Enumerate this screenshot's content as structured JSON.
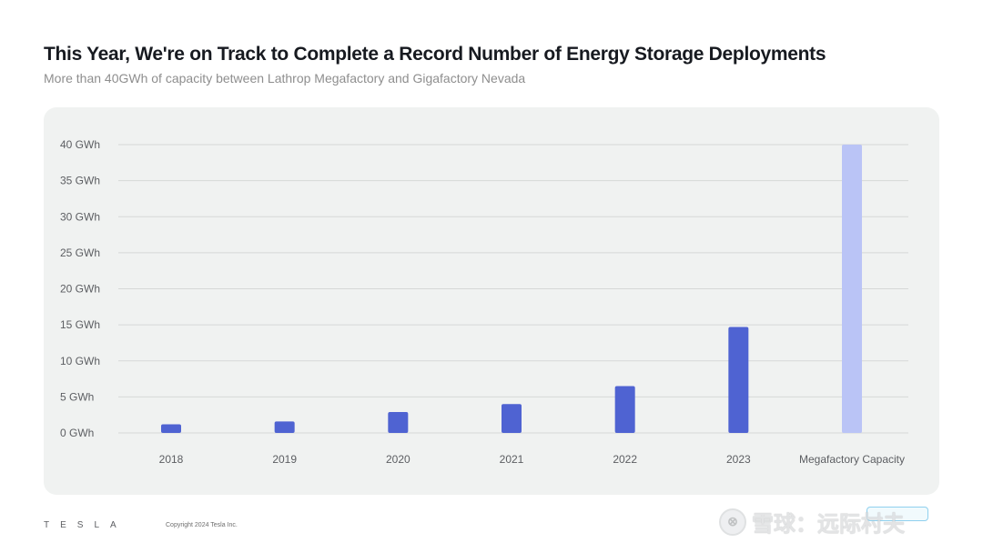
{
  "slide": {
    "title": "This Year, We're on Track to Complete a Record Number of Energy Storage Deployments",
    "subtitle": "More than 40GWh of capacity between Lathrop Megafactory and Gigafactory Nevada"
  },
  "footer": {
    "logo": "TESLA",
    "copyright": "Copyright 2024 Tesla Inc."
  },
  "watermark": {
    "logo_glyph": "⊗",
    "text": "雪球：远际村夫"
  },
  "colors": {
    "bar": "#4f63d2",
    "bar_capacity": "#bac4f6",
    "grid": "#d6d8d7",
    "axis_text": "#5c5e62",
    "panel_bg": "#f0f2f1"
  },
  "chart_data": {
    "type": "bar",
    "title": "",
    "xlabel": "",
    "ylabel": "",
    "ylim": [
      0,
      40
    ],
    "grid": true,
    "y_ticks": [
      "0 GWh",
      "5 GWh",
      "10 GWh",
      "15 GWh",
      "20 GWh",
      "25 GWh",
      "30 GWh",
      "35 GWh",
      "40 GWh"
    ],
    "y_tick_values": [
      0,
      5,
      10,
      15,
      20,
      25,
      30,
      35,
      40
    ],
    "categories": [
      "2018",
      "2019",
      "2020",
      "2021",
      "2022",
      "2023",
      "Megafactory Capacity"
    ],
    "values": [
      1.2,
      1.6,
      2.9,
      4.0,
      6.5,
      14.7,
      40
    ],
    "highlight_category": "Megafactory Capacity"
  }
}
